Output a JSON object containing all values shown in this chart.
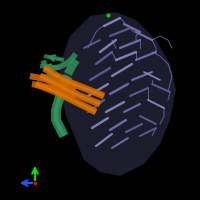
{
  "background_color": "#000000",
  "figure_size": [
    2.0,
    2.0
  ],
  "dpi": 100,
  "main_protein_color": "#7070b0",
  "main_protein_color2": "#5a5a98",
  "main_protein_color3": "#8888c0",
  "green_element_color": "#2e8b57",
  "orange_element_color": "#cc6600",
  "axis_green": "#00dd00",
  "axis_blue": "#2255ff",
  "axis_red": "#ff0000"
}
